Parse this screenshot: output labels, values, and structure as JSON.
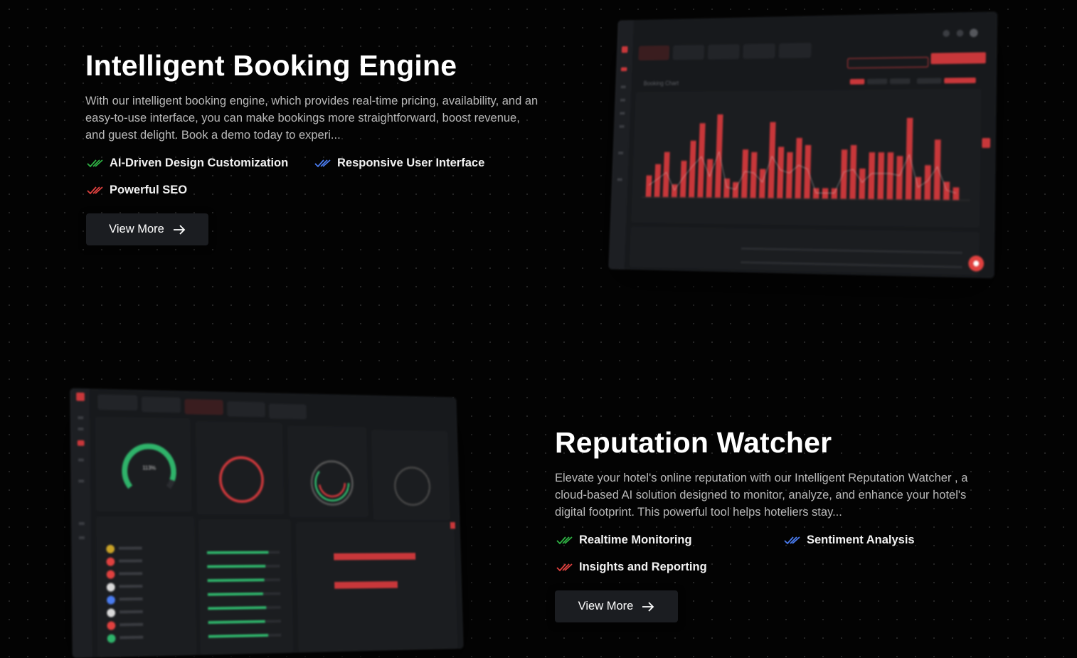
{
  "booking": {
    "title": "Intelligent Booking Engine",
    "description": "With our intelligent booking engine, which provides real-time pricing, availability, and an easy-to-use interface, you can make bookings more straightforward, boost revenue, and guest delight. Book a demo today to experi...",
    "features": [
      {
        "label": "AI-Driven Design Customization",
        "color": "#2fb344"
      },
      {
        "label": "Responsive User Interface",
        "color": "#4a7cf0"
      },
      {
        "label": "Powerful SEO",
        "color": "#e0413f"
      }
    ],
    "button_label": "View More"
  },
  "reputation": {
    "title": "Reputation Watcher",
    "description": "Elevate your hotel's online reputation with our Intelligent Reputation Watcher , a cloud-based AI solution designed to monitor, analyze, and enhance your hotel's digital footprint. This powerful tool helps hoteliers stay...",
    "features": [
      {
        "label": "Realtime Monitoring",
        "color": "#2fb344"
      },
      {
        "label": "Sentiment Analysis",
        "color": "#4a7cf0"
      },
      {
        "label": "Insights and Reporting",
        "color": "#e0413f"
      }
    ],
    "button_label": "View More"
  },
  "booking_mock": {
    "header_title": "Booking Chart",
    "accent": "#c8373a",
    "bars": [
      0.25,
      0.38,
      0.52,
      0.15,
      0.42,
      0.65,
      0.85,
      0.44,
      0.95,
      0.22,
      0.18,
      0.55,
      0.52,
      0.33,
      0.86,
      0.58,
      0.52,
      0.68,
      0.6,
      0.12,
      0.12,
      0.12,
      0.55,
      0.6,
      0.34,
      0.52,
      0.52,
      0.52,
      0.48,
      0.9,
      0.25,
      0.38,
      0.66,
      0.2,
      0.14
    ]
  },
  "reputation_mock": {
    "gauge_label": "113%",
    "accent": "#c8373a",
    "green": "#2fb36a"
  }
}
